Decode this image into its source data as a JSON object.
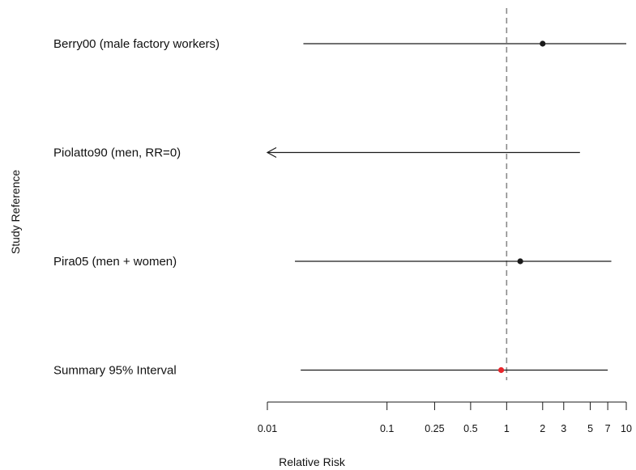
{
  "chart_data": {
    "type": "forest",
    "title": "",
    "xlabel": "Relative Risk",
    "ylabel": "Study Reference",
    "x_scale": "log",
    "xlim": [
      0.01,
      10
    ],
    "x_ticks": [
      {
        "value": 0.01,
        "label": "0.01"
      },
      {
        "value": 0.1,
        "label": "0.1"
      },
      {
        "value": 0.25,
        "label": "0.25"
      },
      {
        "value": 0.5,
        "label": "0.5"
      },
      {
        "value": 1,
        "label": "1"
      },
      {
        "value": 2,
        "label": "2"
      },
      {
        "value": 3,
        "label": "3"
      },
      {
        "value": 5,
        "label": "5"
      },
      {
        "value": 7,
        "label": "7"
      },
      {
        "value": 10,
        "label": "10"
      }
    ],
    "reference_line": {
      "value": 1,
      "style": "dashed"
    },
    "studies": [
      {
        "label": "Berry00 (male factory workers)",
        "estimate": 2.0,
        "lower": 0.02,
        "upper": 10.0,
        "lower_arrow": false,
        "point_color": "#1a1a1a"
      },
      {
        "label": "Piolatto90 (men, RR=0)",
        "estimate": null,
        "lower": 0.01,
        "upper": 4.1,
        "lower_arrow": true,
        "point_color": "#1a1a1a"
      },
      {
        "label": "Pira05 (men + women)",
        "estimate": 1.3,
        "lower": 0.017,
        "upper": 7.5,
        "lower_arrow": false,
        "point_color": "#1a1a1a"
      },
      {
        "label": "Summary 95% Interval",
        "estimate": 0.9,
        "lower": 0.019,
        "upper": 7.0,
        "lower_arrow": false,
        "point_color": "#e8262b"
      }
    ]
  }
}
